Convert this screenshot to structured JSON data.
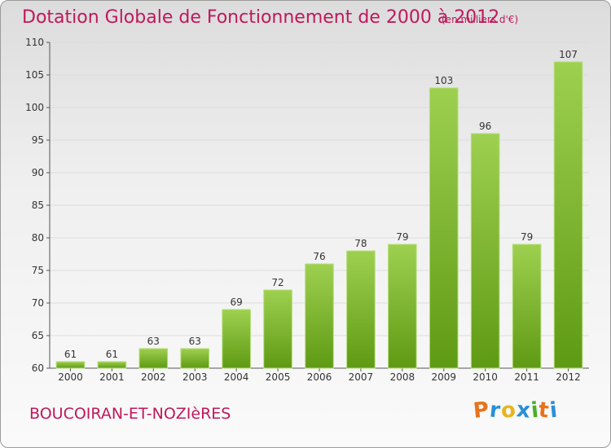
{
  "title": "Dotation Globale de Fonctionnement de 2000 à 2012",
  "subtitle": "(en milliers d'€)",
  "commune": "BOUCOIRAN-ET-NOZIèRES",
  "brand": {
    "letters": [
      "P",
      "r",
      "o",
      "x",
      "i",
      "t",
      "i"
    ],
    "colors": [
      "#e8731b",
      "#2a8fd6",
      "#e8b41b",
      "#2a8fd6",
      "#4caf28",
      "#e8731b",
      "#2a8fd6"
    ]
  },
  "colors": {
    "accent": "#c0185b",
    "bar_top": "#9ed050",
    "bar_bottom": "#5f9a14"
  },
  "chart_data": {
    "type": "bar",
    "title": "Dotation Globale de Fonctionnement de 2000 à 2012",
    "subtitle": "(en milliers d'€)",
    "xlabel": "",
    "ylabel": "",
    "categories": [
      "2000",
      "2001",
      "2002",
      "2003",
      "2004",
      "2005",
      "2006",
      "2007",
      "2008",
      "2009",
      "2010",
      "2011",
      "2012"
    ],
    "values": [
      61,
      61,
      63,
      63,
      69,
      72,
      76,
      78,
      79,
      103,
      96,
      79,
      107
    ],
    "ylim": [
      60,
      110
    ],
    "yticks": [
      60,
      65,
      70,
      75,
      80,
      85,
      90,
      95,
      100,
      105,
      110
    ],
    "grid": true,
    "legend": "none"
  }
}
